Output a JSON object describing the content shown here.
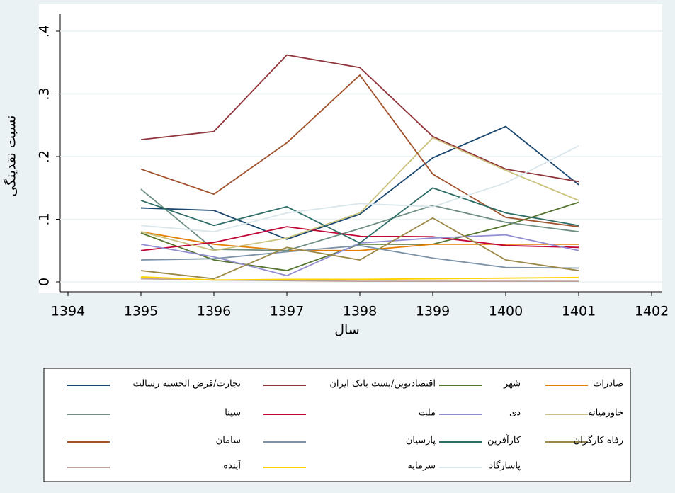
{
  "chart_data": {
    "type": "line",
    "xlabel": "سال",
    "ylabel": "نسبت نقدینگی",
    "x": [
      1395,
      1396,
      1397,
      1398,
      1399,
      1400,
      1401
    ],
    "xlim": [
      1394,
      1402
    ],
    "xticks": [
      1394,
      1395,
      1396,
      1397,
      1398,
      1399,
      1400,
      1401,
      1402
    ],
    "ylim": [
      0,
      0.4
    ],
    "yticks": [
      0,
      {
        "value": 0.1,
        "label": ".1"
      },
      {
        "value": 0.2,
        "label": ".2"
      },
      {
        "value": 0.3,
        "label": ".3"
      },
      {
        "value": 0.4,
        "label": ".4"
      }
    ],
    "grid": true,
    "series": [
      {
        "name": "تجارت/قرض الحسنه رسالت",
        "color": "#1a476f",
        "values": [
          0.118,
          0.114,
          0.068,
          0.108,
          0.198,
          0.248,
          0.155
        ]
      },
      {
        "name": "اقتصادنوین/پست بانک ایران",
        "color": "#90353b",
        "values": [
          0.227,
          0.24,
          0.362,
          0.342,
          0.232,
          0.18,
          0.16
        ]
      },
      {
        "name": "شهر",
        "color": "#55752f",
        "values": [
          0.078,
          0.035,
          0.018,
          0.06,
          0.06,
          0.09,
          0.127
        ]
      },
      {
        "name": "صادرات",
        "color": "#e37e00",
        "values": [
          0.08,
          0.06,
          0.05,
          0.05,
          0.06,
          0.06,
          0.06
        ]
      },
      {
        "name": "سینا",
        "color": "#6e8e84",
        "values": [
          0.148,
          0.052,
          0.05,
          0.085,
          0.122,
          0.095,
          0.08
        ]
      },
      {
        "name": "ملت",
        "color": "#c10534",
        "values": [
          0.05,
          0.063,
          0.088,
          0.073,
          0.072,
          0.058,
          0.055
        ]
      },
      {
        "name": "دی",
        "color": "#938dd2",
        "values": [
          0.06,
          0.04,
          0.01,
          0.062,
          0.07,
          0.075,
          0.05
        ]
      },
      {
        "name": "خاورمیانه",
        "color": "#cac27e",
        "values": [
          0.08,
          0.05,
          0.07,
          0.11,
          0.23,
          0.178,
          0.13
        ]
      },
      {
        "name": "سامان",
        "color": "#a0522d",
        "values": [
          0.18,
          0.14,
          0.222,
          0.33,
          0.172,
          0.103,
          0.088
        ]
      },
      {
        "name": "پارسیان",
        "color": "#7b92a8",
        "values": [
          0.035,
          0.037,
          0.048,
          0.058,
          0.038,
          0.023,
          0.022
        ]
      },
      {
        "name": "کارآفرین",
        "color": "#2d6d66",
        "values": [
          0.13,
          0.09,
          0.12,
          0.062,
          0.15,
          0.11,
          0.09
        ]
      },
      {
        "name": "رفاه کارگران",
        "color": "#9c8847",
        "values": [
          0.018,
          0.005,
          0.055,
          0.035,
          0.102,
          0.035,
          0.018
        ]
      },
      {
        "name": "آینده",
        "color": "#bfa19c",
        "values": [
          0.005,
          0.003,
          0.002,
          0.001,
          0.001,
          0.001,
          0.001
        ]
      },
      {
        "name": "سرمایه",
        "color": "#ffd200",
        "values": [
          0.008,
          0.003,
          0.004,
          0.004,
          0.005,
          0.006,
          0.007
        ]
      },
      {
        "name": "پاسارگاد",
        "color": "#d9e6eb",
        "values": [
          0.09,
          0.08,
          0.11,
          0.125,
          0.12,
          0.158,
          0.217
        ]
      }
    ]
  }
}
